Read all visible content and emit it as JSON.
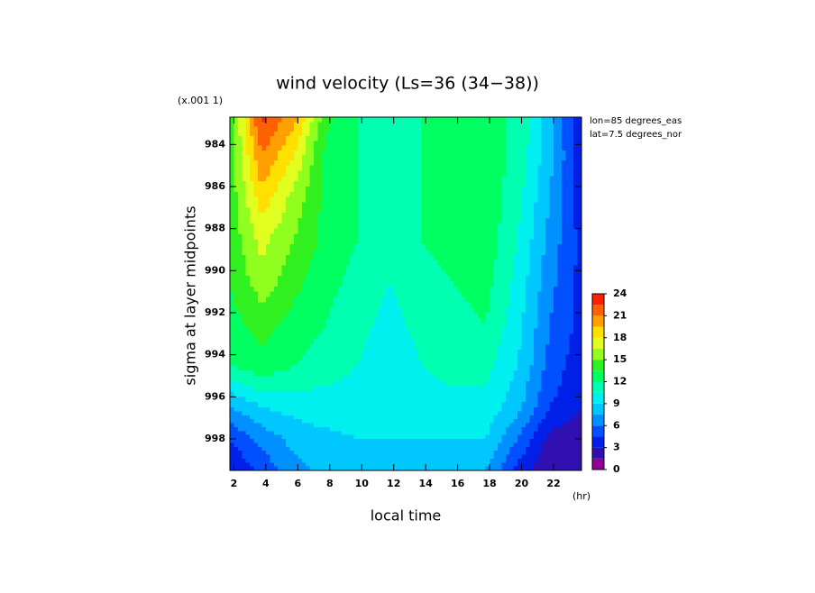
{
  "chart_data": {
    "type": "contour",
    "title": "wind velocity (Ls=36 (34−38))",
    "y_scale_note": "(x.001 1)",
    "x_label": "local time",
    "x_unit": "(hr)",
    "y_label": "sigma at layer midpoints",
    "annotations": [
      "lon=85 degrees_eas",
      "lat=7.5 degrees_nor"
    ],
    "x": [
      1.75,
      3.75,
      5.75,
      7.75,
      9.75,
      11.75,
      13.75,
      15.75,
      17.75,
      19.75,
      21.75,
      23.75
    ],
    "y": [
      982.7,
      984.5,
      986.5,
      988.5,
      990.5,
      992.5,
      994.5,
      996.5,
      998,
      999.5
    ],
    "z": [
      [
        14,
        23,
        20,
        14,
        12,
        11,
        12,
        12,
        12,
        12,
        8,
        3
      ],
      [
        14,
        21,
        18,
        13,
        12,
        11,
        12,
        12.5,
        13,
        11.5,
        8,
        3.5
      ],
      [
        14,
        19,
        16,
        13,
        12,
        11,
        12,
        12.5,
        13,
        11,
        7.5,
        3.5
      ],
      [
        14,
        17,
        15,
        13,
        12,
        10.5,
        12,
        12.5,
        13,
        10.5,
        7,
        4
      ],
      [
        13.5,
        16,
        14,
        12.5,
        11.5,
        10.5,
        11.5,
        12,
        12.5,
        10,
        6.5,
        4
      ],
      [
        13,
        14,
        13,
        12,
        11,
        10,
        11,
        11.5,
        12,
        9.5,
        6,
        4
      ],
      [
        12,
        13,
        12,
        11,
        10.5,
        9.5,
        10.5,
        11,
        11,
        9,
        5.5,
        3.5
      ],
      [
        7.5,
        9,
        9.5,
        10,
        10,
        9,
        10,
        10,
        10,
        8,
        4.5,
        3
      ],
      [
        4.5,
        6.5,
        8,
        8.5,
        9,
        9,
        9,
        9,
        9,
        6,
        2.5,
        2
      ],
      [
        3,
        5,
        7,
        8,
        8.5,
        8.5,
        8,
        8,
        7.5,
        4,
        1.5,
        2
      ]
    ],
    "xlim": [
      1.75,
      23.75
    ],
    "xticks": [
      2,
      4,
      6,
      8,
      10,
      12,
      14,
      16,
      18,
      20,
      22
    ],
    "ylim": [
      982.7,
      999.5
    ],
    "yticks": [
      984,
      986,
      988,
      990,
      992,
      994,
      996,
      998
    ],
    "y_reversed": true,
    "levels": [
      0,
      1.5,
      3,
      4.5,
      6,
      7.5,
      9,
      10.5,
      12,
      13.5,
      15,
      16.5,
      18,
      19.5,
      21,
      22.5,
      24
    ],
    "colors": [
      "#900098",
      "#3010b0",
      "#0020e8",
      "#0050ff",
      "#0090ff",
      "#00c8ff",
      "#00f0f0",
      "#00ffb0",
      "#00ff60",
      "#30f020",
      "#90ff20",
      "#e0ff20",
      "#ffe000",
      "#ffa000",
      "#ff6000",
      "#ff2000"
    ],
    "colorbar_ticks": [
      0,
      3,
      6,
      9,
      12,
      15,
      18,
      21,
      24
    ]
  }
}
